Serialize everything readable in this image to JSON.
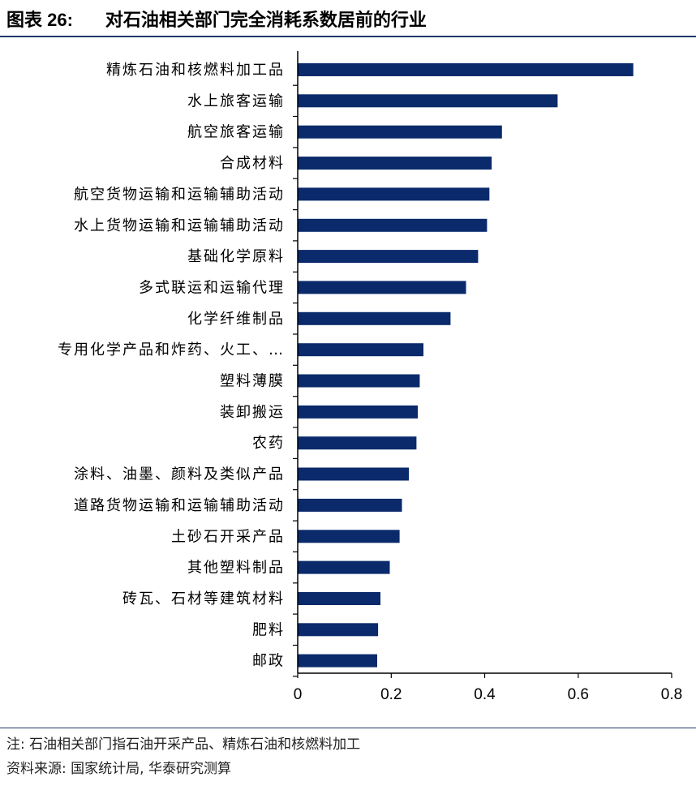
{
  "header": {
    "figure_number": "图表 26:",
    "title": "对石油相关部门完全消耗系数居前的行业"
  },
  "chart_data": {
    "type": "bar",
    "orientation": "horizontal",
    "title": "对石油相关部门完全消耗系数居前的行业",
    "xlabel": "",
    "ylabel": "",
    "xlim": [
      0,
      0.8
    ],
    "xticks": [
      0,
      0.2,
      0.4,
      0.6,
      0.8
    ],
    "xtick_labels": [
      "0",
      "0.2",
      "0.4",
      "0.6",
      "0.8"
    ],
    "grid": false,
    "legend": "none",
    "bar_color": "#0a2a6b",
    "categories": [
      "精炼石油和核燃料加工品",
      "水上旅客运输",
      "航空旅客运输",
      "合成材料",
      "航空货物运输和运输辅助活动",
      "水上货物运输和运输辅助活动",
      "基础化学原料",
      "多式联运和运输代理",
      "化学纤维制品",
      "专用化学产品和炸药、火工、…",
      "塑料薄膜",
      "装卸搬运",
      "农药",
      "涂料、油墨、颜料及类似产品",
      "道路货物运输和运输辅助活动",
      "土砂石开采产品",
      "其他塑料制品",
      "砖瓦、石材等建筑材料",
      "肥料",
      "邮政"
    ],
    "values": [
      0.718,
      0.556,
      0.437,
      0.415,
      0.41,
      0.405,
      0.386,
      0.36,
      0.327,
      0.269,
      0.261,
      0.257,
      0.254,
      0.238,
      0.223,
      0.218,
      0.197,
      0.177,
      0.172,
      0.17
    ]
  },
  "footer": {
    "note": "注: 石油相关部门指石油开采产品、精炼石油和核燃料加工",
    "source": "资料来源: 国家统计局, 华泰研究测算"
  }
}
